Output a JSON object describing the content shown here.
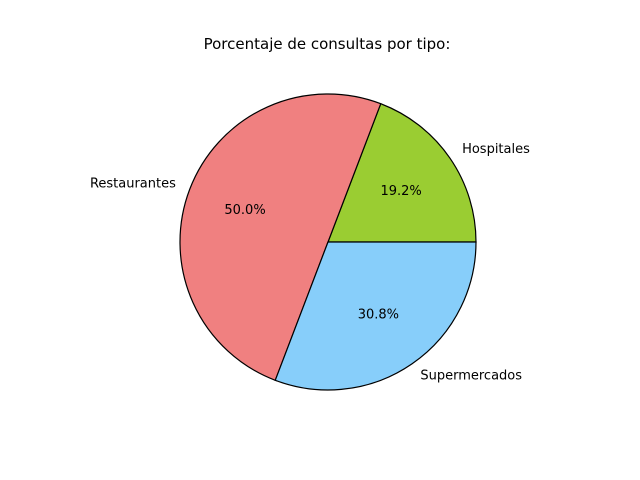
{
  "chart_data": {
    "type": "pie",
    "title": "Porcentaje de consultas por tipo:",
    "categories": [
      "Hospitales",
      "Restaurantes",
      "Supermercados"
    ],
    "values": [
      19.2,
      50.0,
      30.8
    ],
    "percent_labels": [
      "19.2%",
      "50.0%",
      "30.8%"
    ],
    "colors": [
      "#9acd32",
      "#f08080",
      "#87cefa"
    ],
    "start_angle_deg": 0,
    "direction": "counterclockwise",
    "legend": "none"
  }
}
